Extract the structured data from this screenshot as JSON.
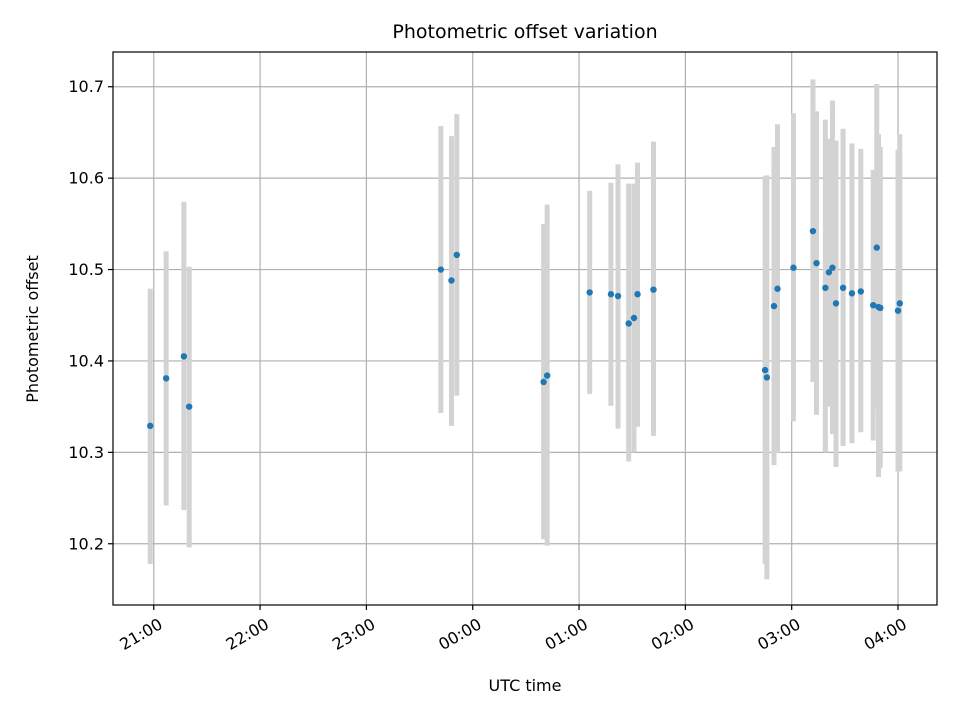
{
  "chart_data": {
    "type": "scatter",
    "title": "Photometric offset variation",
    "xlabel": "UTC time",
    "ylabel": "Photometric offset",
    "grid": true,
    "colors": {
      "points": "#1f77b4",
      "errorbars": "#d3d3d3",
      "grid": "#b0b0b0"
    },
    "xlim": [
      "20:37",
      "04:22"
    ],
    "ylim": [
      10.133,
      10.738
    ],
    "x_ticks": [
      "21:00",
      "22:00",
      "23:00",
      "00:00",
      "01:00",
      "02:00",
      "03:00",
      "04:00"
    ],
    "y_ticks": [
      "10.2",
      "10.3",
      "10.4",
      "10.5",
      "10.6",
      "10.7"
    ],
    "points": [
      {
        "x": "20:58",
        "y": 10.329,
        "lo": 10.178,
        "hi": 10.479
      },
      {
        "x": "21:07",
        "y": 10.381,
        "lo": 10.242,
        "hi": 10.52
      },
      {
        "x": "21:17",
        "y": 10.405,
        "lo": 10.237,
        "hi": 10.574
      },
      {
        "x": "21:20",
        "y": 10.35,
        "lo": 10.196,
        "hi": 10.503
      },
      {
        "x": "23:42",
        "y": 10.5,
        "lo": 10.343,
        "hi": 10.657
      },
      {
        "x": "23:48",
        "y": 10.488,
        "lo": 10.329,
        "hi": 10.646
      },
      {
        "x": "23:51",
        "y": 10.516,
        "lo": 10.362,
        "hi": 10.67
      },
      {
        "x": "00:40",
        "y": 10.377,
        "lo": 10.205,
        "hi": 10.55
      },
      {
        "x": "00:42",
        "y": 10.384,
        "lo": 10.198,
        "hi": 10.571
      },
      {
        "x": "01:06",
        "y": 10.475,
        "lo": 10.364,
        "hi": 10.586
      },
      {
        "x": "01:18",
        "y": 10.473,
        "lo": 10.351,
        "hi": 10.595
      },
      {
        "x": "01:22",
        "y": 10.471,
        "lo": 10.326,
        "hi": 10.615
      },
      {
        "x": "01:28",
        "y": 10.441,
        "lo": 10.29,
        "hi": 10.594
      },
      {
        "x": "01:31",
        "y": 10.447,
        "lo": 10.3,
        "hi": 10.594
      },
      {
        "x": "01:33",
        "y": 10.473,
        "lo": 10.328,
        "hi": 10.617
      },
      {
        "x": "01:42",
        "y": 10.478,
        "lo": 10.318,
        "hi": 10.64
      },
      {
        "x": "02:45",
        "y": 10.39,
        "lo": 10.178,
        "hi": 10.602
      },
      {
        "x": "02:46",
        "y": 10.382,
        "lo": 10.161,
        "hi": 10.603
      },
      {
        "x": "02:50",
        "y": 10.46,
        "lo": 10.286,
        "hi": 10.634
      },
      {
        "x": "02:52",
        "y": 10.479,
        "lo": 10.299,
        "hi": 10.659
      },
      {
        "x": "03:01",
        "y": 10.502,
        "lo": 10.334,
        "hi": 10.671
      },
      {
        "x": "03:12",
        "y": 10.542,
        "lo": 10.377,
        "hi": 10.708
      },
      {
        "x": "03:14",
        "y": 10.507,
        "lo": 10.341,
        "hi": 10.673
      },
      {
        "x": "03:19",
        "y": 10.48,
        "lo": 10.3,
        "hi": 10.664
      },
      {
        "x": "03:21",
        "y": 10.497,
        "lo": 10.35,
        "hi": 10.643
      },
      {
        "x": "03:23",
        "y": 10.502,
        "lo": 10.32,
        "hi": 10.685
      },
      {
        "x": "03:25",
        "y": 10.463,
        "lo": 10.284,
        "hi": 10.641
      },
      {
        "x": "03:29",
        "y": 10.48,
        "lo": 10.307,
        "hi": 10.654
      },
      {
        "x": "03:34",
        "y": 10.474,
        "lo": 10.31,
        "hi": 10.638
      },
      {
        "x": "03:39",
        "y": 10.476,
        "lo": 10.322,
        "hi": 10.632
      },
      {
        "x": "03:46",
        "y": 10.461,
        "lo": 10.313,
        "hi": 10.609
      },
      {
        "x": "03:48",
        "y": 10.524,
        "lo": 10.348,
        "hi": 10.703
      },
      {
        "x": "03:49",
        "y": 10.459,
        "lo": 10.273,
        "hi": 10.648
      },
      {
        "x": "03:50",
        "y": 10.458,
        "lo": 10.283,
        "hi": 10.634
      },
      {
        "x": "04:00",
        "y": 10.455,
        "lo": 10.279,
        "hi": 10.631
      },
      {
        "x": "04:01",
        "y": 10.463,
        "lo": 10.279,
        "hi": 10.648
      }
    ]
  }
}
